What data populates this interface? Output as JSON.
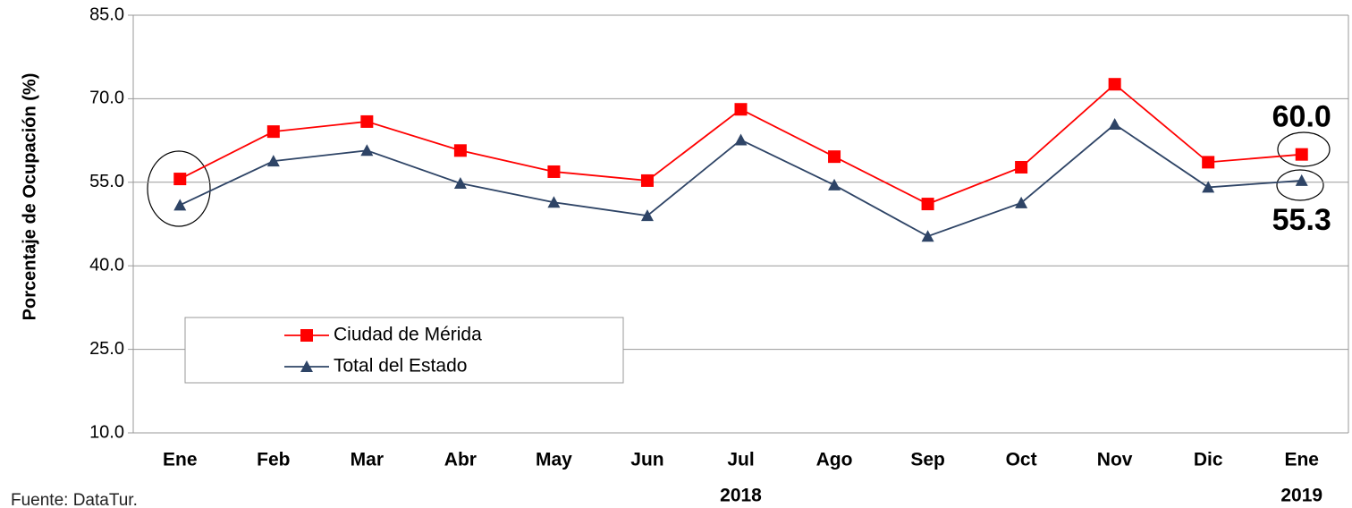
{
  "chart_data": {
    "type": "line",
    "y_label": "Porcentaje de Ocupación (%)",
    "categories": [
      "Ene",
      "Feb",
      "Mar",
      "Abr",
      "May",
      "Jun",
      "Jul",
      "Ago",
      "Sep",
      "Oct",
      "Nov",
      "Dic",
      "Ene"
    ],
    "x_group_labels": [
      {
        "label": "2018",
        "index": 6
      },
      {
        "label": "2019",
        "index": 12
      }
    ],
    "series": [
      {
        "name": "Ciudad de Mérida",
        "color": "#ff0000",
        "marker": "square",
        "values": [
          55.6,
          64.1,
          65.9,
          60.7,
          56.9,
          55.3,
          68.1,
          59.6,
          51.1,
          57.7,
          72.6,
          58.6,
          60.0
        ],
        "value_labels": [
          null,
          null,
          null,
          null,
          null,
          null,
          null,
          null,
          null,
          null,
          null,
          null,
          "60.0"
        ]
      },
      {
        "name": "Total del Estado",
        "color": "#2e4466",
        "marker": "triangle",
        "values": [
          50.9,
          58.8,
          60.7,
          54.8,
          51.4,
          49.0,
          62.6,
          54.5,
          45.3,
          51.3,
          65.4,
          54.1,
          55.3
        ],
        "value_labels": [
          null,
          null,
          null,
          null,
          null,
          null,
          null,
          null,
          null,
          null,
          null,
          null,
          "55.3"
        ]
      }
    ],
    "ylim": [
      10,
      85
    ],
    "yticks": [
      {
        "value": 10,
        "label": "10.0"
      },
      {
        "value": 25,
        "label": "25.0"
      },
      {
        "value": 40,
        "label": "40.0"
      },
      {
        "value": 55,
        "label": "55.0"
      },
      {
        "value": 70,
        "label": "70.0"
      },
      {
        "value": 85,
        "label": "85.0"
      }
    ],
    "grid": true,
    "legend": "lower left",
    "source": "Fuente: DataTur."
  }
}
